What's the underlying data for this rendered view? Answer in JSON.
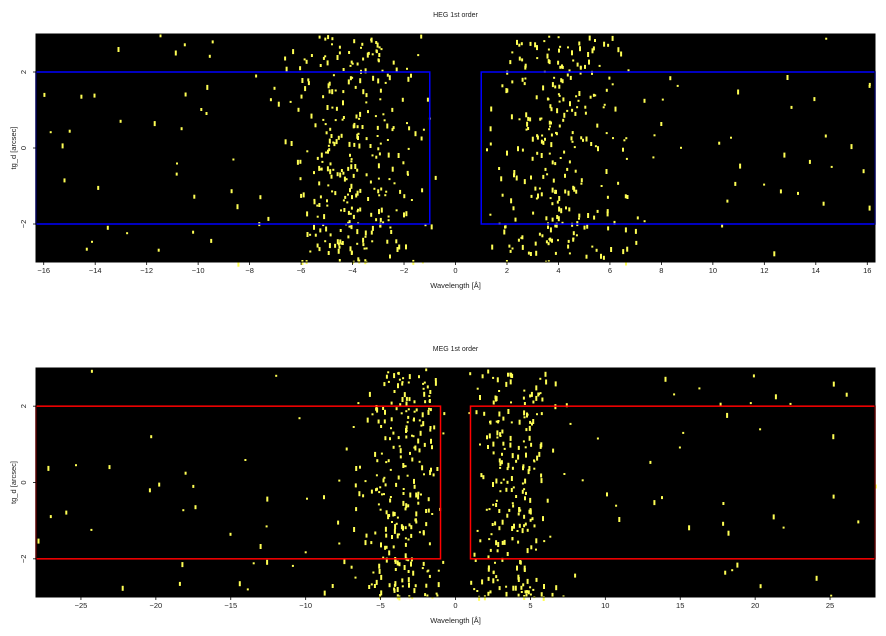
{
  "chart_data": [
    {
      "type": "scatter",
      "title": "HEG 1st order",
      "xlabel": "Wavelength [Å]",
      "ylabel": "tg_d [arcsec]",
      "xlim": [
        -16.3,
        16.3
      ],
      "ylim": [
        -3.0,
        3.0
      ],
      "xticks": [
        -16,
        -14,
        -12,
        -10,
        -8,
        -6,
        -4,
        -2,
        0,
        2,
        4,
        6,
        8,
        10,
        12,
        14,
        16
      ],
      "yticks": [
        -2,
        0,
        2
      ],
      "background": "#000000",
      "point_color": "#ffff55",
      "regions": [
        {
          "x": [
            -16.3,
            -1.0
          ],
          "y": [
            -2.0,
            2.0
          ],
          "color": "#0000ff"
        },
        {
          "x": [
            1.0,
            16.3
          ],
          "y": [
            -2.0,
            2.0
          ],
          "color": "#0000ff"
        }
      ],
      "bands": [
        {
          "x_center": -4.0,
          "x_sigma": 1.3,
          "weight": 300
        },
        {
          "x_center": 4.0,
          "x_sigma": 1.3,
          "weight": 260
        },
        {
          "x_range": [
            -16.3,
            -1.0
          ],
          "weight": 60
        },
        {
          "x_range": [
            1.0,
            16.3
          ],
          "weight": 55
        }
      ],
      "random_seed": 11
    },
    {
      "type": "scatter",
      "title": "MEG 1st order",
      "xlabel": "Wavelength [Å]",
      "ylabel": "tg_d [arcsec]",
      "xlim": [
        -28.0,
        28.0
      ],
      "ylim": [
        -3.0,
        3.0
      ],
      "xticks": [
        -25,
        -20,
        -15,
        -10,
        -5,
        0,
        5,
        10,
        15,
        20,
        25
      ],
      "yticks": [
        -2,
        0,
        2
      ],
      "background": "#000000",
      "point_color": "#ffff55",
      "regions": [
        {
          "x": [
            -28.0,
            -1.0
          ],
          "y": [
            -2.0,
            2.0
          ],
          "color": "#ff0000"
        },
        {
          "x": [
            1.0,
            28.0
          ],
          "y": [
            -2.0,
            2.0
          ],
          "color": "#ff0000"
        }
      ],
      "bands": [
        {
          "x_center": -3.5,
          "x_sigma": 1.5,
          "weight": 260
        },
        {
          "x_center": 3.5,
          "x_sigma": 1.5,
          "weight": 240
        },
        {
          "x_range": [
            -28.0,
            -1.0
          ],
          "weight": 50
        },
        {
          "x_range": [
            1.0,
            28.0
          ],
          "weight": 50
        }
      ],
      "random_seed": 23
    }
  ]
}
